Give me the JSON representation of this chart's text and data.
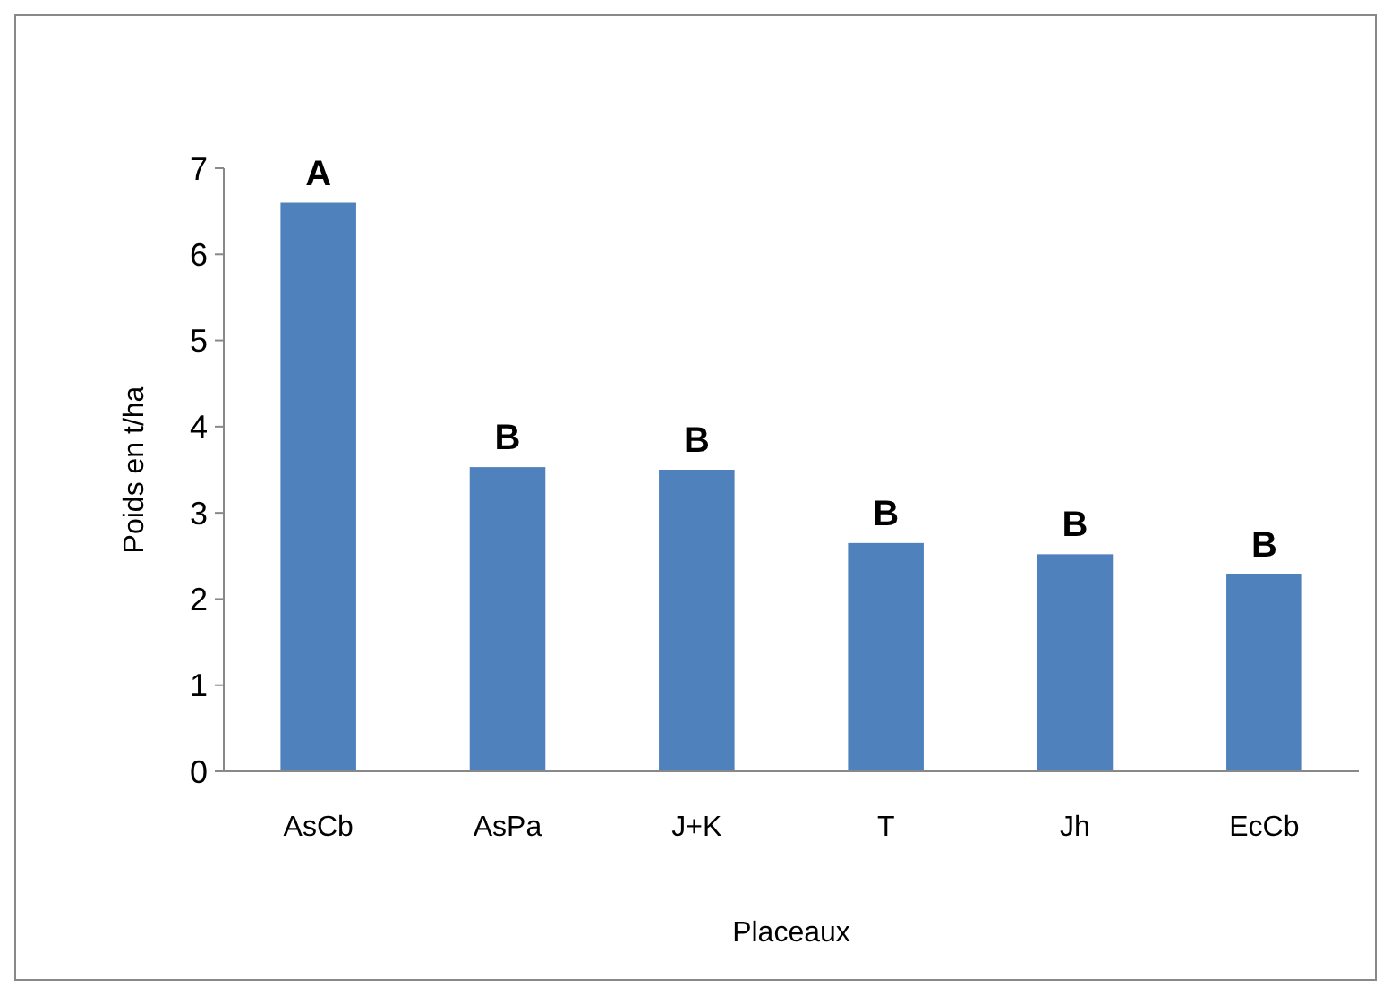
{
  "chart_data": {
    "type": "bar",
    "xlabel": "Placeaux",
    "ylabel": "Poids en t/ha",
    "categories": [
      "AsCb",
      "AsPa",
      "J+K",
      "T",
      "Jh",
      "EcCb"
    ],
    "values": [
      6.6,
      3.53,
      3.5,
      2.65,
      2.52,
      2.29
    ],
    "color": "#4f81bd",
    "ylim": [
      0,
      7
    ],
    "yticks": [
      0,
      1,
      2,
      3,
      4,
      5,
      6,
      7
    ],
    "grid": false,
    "annotations": [
      {
        "text": "A",
        "x": "AsCb",
        "y": 6.6
      },
      {
        "text": "B",
        "x": "AsPa",
        "y": 3.53
      },
      {
        "text": "B",
        "x": "J+K",
        "y": 3.5
      },
      {
        "text": "B",
        "x": "T",
        "y": 2.65
      },
      {
        "text": "B",
        "x": "Jh",
        "y": 2.52
      },
      {
        "text": "B",
        "x": "EcCb",
        "y": 2.29
      }
    ]
  }
}
